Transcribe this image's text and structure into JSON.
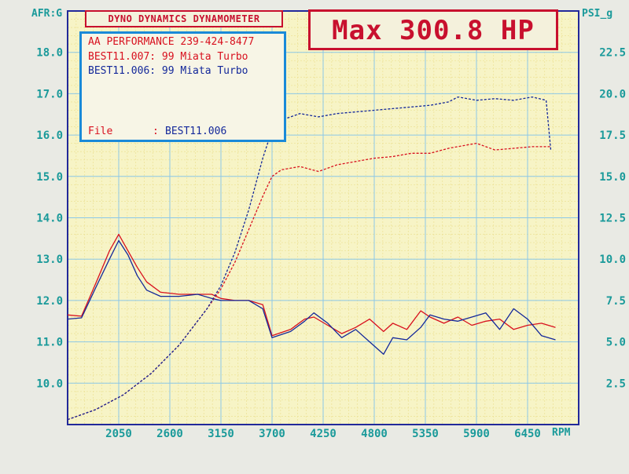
{
  "header": {
    "title": "DYNO DYNAMICS DYNAMOMETER",
    "max_label": "Max 300.8 HP"
  },
  "info_box": {
    "shop": "AA PERFORMANCE 239-424-8477",
    "run1": "BEST11.007: 99 Miata Turbo",
    "run2": "BEST11.006: 99 Miata Turbo",
    "file_label": "File",
    "file_sep": ":",
    "file_value": "BEST11.006"
  },
  "colors": {
    "paper": "#f7f4c6",
    "grid": "#8cc8e8",
    "minor": "#ede39a",
    "frame": "#22299a",
    "axis_text": "#1a9a9a",
    "red": "#d8101e",
    "blue": "#14289a"
  },
  "chart_data": {
    "type": "line",
    "x_unit": "RPM",
    "xlim": [
      1500,
      7000
    ],
    "x_ticks": [
      2050,
      2600,
      3150,
      3700,
      4250,
      4800,
      5350,
      5900,
      6450
    ],
    "y_left": {
      "label": "AFR:G",
      "lim": [
        9.0,
        19.0
      ],
      "ticks": [
        10.0,
        11.0,
        12.0,
        13.0,
        14.0,
        15.0,
        16.0,
        17.0,
        18.0
      ]
    },
    "y_right": {
      "label": "PSI_g",
      "lim": [
        0.0,
        25.0
      ],
      "ticks": [
        2.5,
        5.0,
        7.5,
        10.0,
        12.5,
        15.0,
        17.5,
        20.0,
        22.5
      ]
    },
    "grid": true,
    "series": [
      {
        "name": "BEST11.007",
        "kind": "AFR",
        "axis": "left",
        "color": "#d8101e",
        "style": "solid",
        "x": [
          1500,
          1650,
          1800,
          1950,
          2050,
          2150,
          2250,
          2350,
          2500,
          2700,
          2900,
          3050,
          3150,
          3300,
          3450,
          3600,
          3700,
          3900,
          4050,
          4150,
          4300,
          4450,
          4600,
          4750,
          4900,
          5000,
          5150,
          5300,
          5400,
          5550,
          5700,
          5850,
          6000,
          6150,
          6300,
          6450,
          6600,
          6750
        ],
        "y": [
          11.65,
          11.62,
          12.4,
          13.2,
          13.6,
          13.2,
          12.8,
          12.45,
          12.2,
          12.15,
          12.15,
          12.15,
          12.05,
          12.0,
          12.0,
          11.9,
          11.15,
          11.3,
          11.55,
          11.6,
          11.4,
          11.2,
          11.35,
          11.55,
          11.25,
          11.45,
          11.3,
          11.75,
          11.6,
          11.45,
          11.6,
          11.4,
          11.5,
          11.55,
          11.3,
          11.4,
          11.45,
          11.35
        ]
      },
      {
        "name": "BEST11.006",
        "kind": "AFR",
        "axis": "left",
        "color": "#14289a",
        "style": "solid",
        "x": [
          1500,
          1650,
          1800,
          1950,
          2050,
          2150,
          2250,
          2350,
          2500,
          2700,
          2900,
          3050,
          3150,
          3300,
          3450,
          3600,
          3700,
          3900,
          4050,
          4150,
          4300,
          4450,
          4600,
          4750,
          4900,
          5000,
          5150,
          5300,
          5400,
          5550,
          5700,
          5850,
          6000,
          6150,
          6300,
          6450,
          6600,
          6750
        ],
        "y": [
          11.55,
          11.58,
          12.3,
          13.0,
          13.45,
          13.1,
          12.6,
          12.25,
          12.1,
          12.1,
          12.15,
          12.05,
          12.0,
          12.0,
          12.0,
          11.8,
          11.1,
          11.25,
          11.5,
          11.7,
          11.45,
          11.1,
          11.3,
          11.0,
          10.7,
          11.1,
          11.05,
          11.35,
          11.65,
          11.55,
          11.5,
          11.6,
          11.7,
          11.3,
          11.8,
          11.55,
          11.15,
          11.05
        ]
      },
      {
        "name": "BEST11.007",
        "kind": "Boost",
        "axis": "right",
        "color": "#d8101e",
        "style": "dashed",
        "x": [
          1500,
          1800,
          2100,
          2400,
          2700,
          3000,
          3150,
          3300,
          3450,
          3600,
          3700,
          3800,
          4000,
          4200,
          4400,
          4600,
          4800,
          5000,
          5200,
          5400,
          5600,
          5800,
          5900,
          6100,
          6300,
          6500,
          6700
        ],
        "y": [
          0.3,
          0.9,
          1.8,
          3.1,
          4.8,
          7.0,
          8.2,
          9.8,
          11.8,
          13.8,
          15.0,
          15.4,
          15.6,
          15.3,
          15.7,
          15.9,
          16.1,
          16.2,
          16.4,
          16.4,
          16.7,
          16.9,
          17.0,
          16.6,
          16.7,
          16.8,
          16.8
        ]
      },
      {
        "name": "BEST11.006",
        "kind": "Boost",
        "axis": "right",
        "color": "#14289a",
        "style": "dashed",
        "x": [
          1500,
          1800,
          2100,
          2400,
          2700,
          3000,
          3150,
          3300,
          3450,
          3600,
          3700,
          3800,
          4000,
          4200,
          4400,
          4600,
          4800,
          5000,
          5200,
          5400,
          5600,
          5700,
          5900,
          6100,
          6300,
          6500,
          6650,
          6700
        ],
        "y": [
          0.3,
          0.9,
          1.8,
          3.1,
          4.8,
          7.0,
          8.4,
          10.4,
          13.0,
          16.1,
          17.8,
          18.4,
          18.8,
          18.6,
          18.8,
          18.9,
          19.0,
          19.1,
          19.2,
          19.3,
          19.5,
          19.8,
          19.6,
          19.7,
          19.6,
          19.8,
          19.6,
          16.6
        ]
      }
    ]
  }
}
